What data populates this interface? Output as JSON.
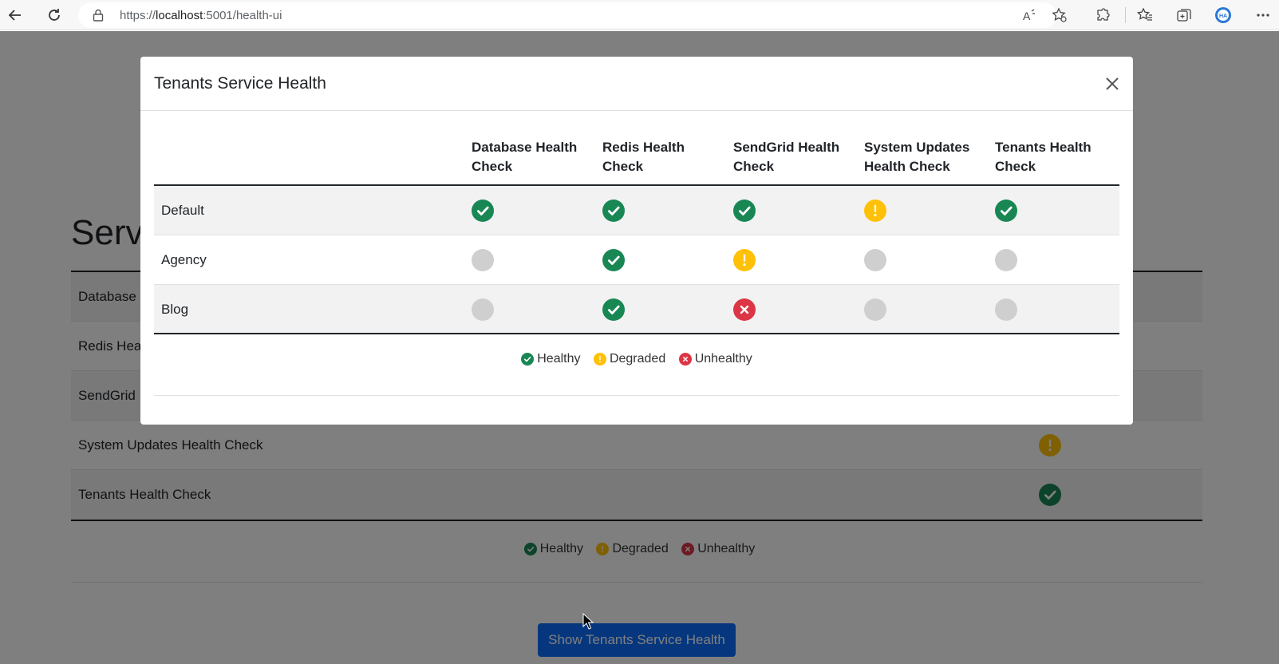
{
  "browser": {
    "url_prefix": "https://",
    "url_host": "localhost",
    "url_rest": ":5001/health-ui"
  },
  "page": {
    "title": "Servi",
    "rows": [
      {
        "label": "Database",
        "status": ""
      },
      {
        "label": "Redis Hea",
        "status": ""
      },
      {
        "label": "SendGrid",
        "status": ""
      },
      {
        "label": "System Updates Health Check",
        "status": "degraded"
      },
      {
        "label": "Tenants Health Check",
        "status": "healthy"
      }
    ],
    "legend": {
      "healthy": "Healthy",
      "degraded": "Degraded",
      "unhealthy": "Unhealthy"
    },
    "show_button": "Show Tenants Service Health"
  },
  "modal": {
    "title": "Tenants Service Health",
    "columns": [
      {
        "line1": "Database Health",
        "line2": "Check"
      },
      {
        "line1": "Redis Health",
        "line2": "Check"
      },
      {
        "line1": "SendGrid Health",
        "line2": "Check"
      },
      {
        "line1": "System Updates",
        "line2": "Health Check"
      },
      {
        "line1": "Tenants Health",
        "line2": "Check"
      }
    ],
    "rows": [
      {
        "label": "Default",
        "statuses": [
          "healthy",
          "healthy",
          "healthy",
          "degraded",
          "healthy"
        ]
      },
      {
        "label": "Agency",
        "statuses": [
          "unknown",
          "healthy",
          "degraded",
          "unknown",
          "unknown"
        ]
      },
      {
        "label": "Blog",
        "statuses": [
          "unknown",
          "healthy",
          "unhealthy",
          "unknown",
          "unknown"
        ]
      }
    ],
    "legend": {
      "healthy": "Healthy",
      "degraded": "Degraded",
      "unhealthy": "Unhealthy"
    }
  },
  "colors": {
    "healthy": "#198754",
    "degraded": "#ffc107",
    "unhealthy": "#dc3545",
    "unknown": "#cfcfcf",
    "primary": "#0d6efd"
  }
}
